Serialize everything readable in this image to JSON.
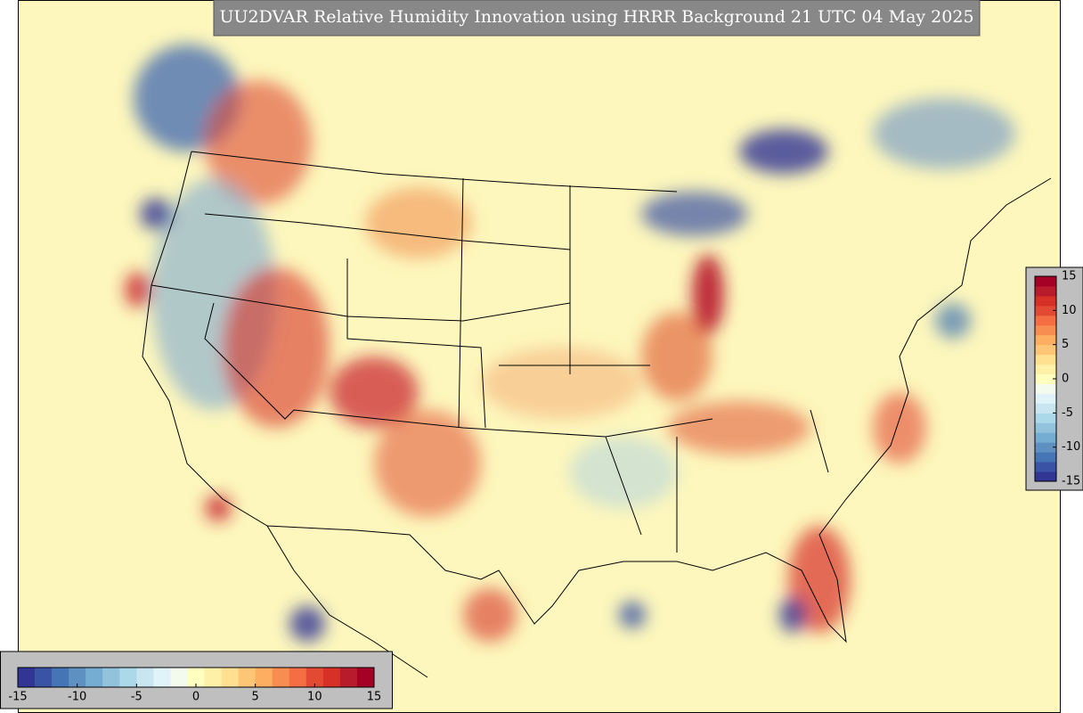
{
  "title": "UU2DVAR Relative Humidity Innovation using HRRR Background 21 UTC 04 May 2025",
  "colormap": [
    "#313695",
    "#3a53a4",
    "#4575b4",
    "#5f90c2",
    "#74add1",
    "#93c2dd",
    "#abd9e9",
    "#c9e6f0",
    "#e0f3f8",
    "#f3faee",
    "#ffffbf",
    "#fff0a8",
    "#fee090",
    "#fdc677",
    "#fdae61",
    "#f88d52",
    "#f46d43",
    "#e34a33",
    "#d73027",
    "#b81b2c",
    "#a50026"
  ],
  "colorbars": [
    {
      "orientation": "vertical",
      "lim": [
        -15,
        15
      ],
      "ticks": [
        15,
        10,
        5,
        0,
        -5,
        -10,
        -15
      ]
    },
    {
      "orientation": "horizontal",
      "lim": [
        -15,
        15
      ],
      "ticks": [
        -15,
        -10,
        -5,
        0,
        5,
        10,
        15
      ]
    }
  ]
}
